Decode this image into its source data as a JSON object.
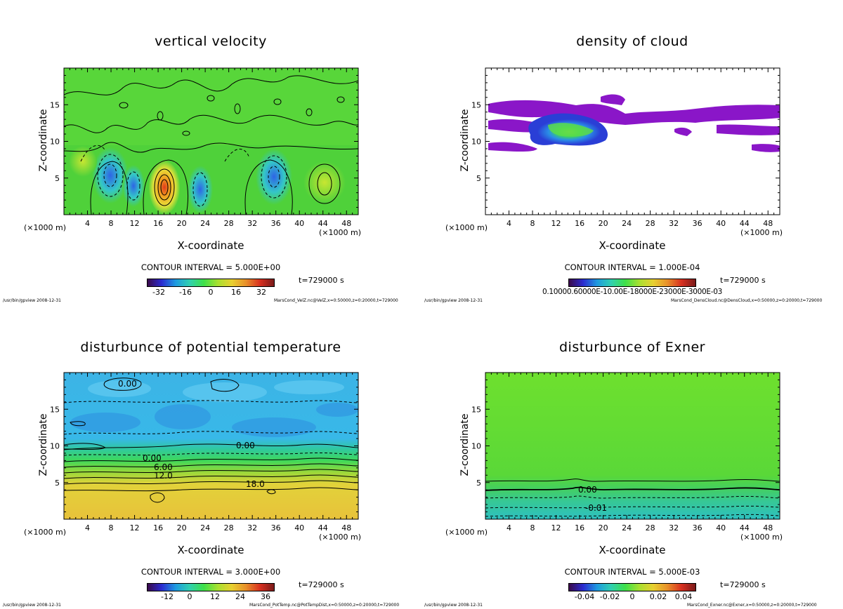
{
  "panels": [
    {
      "title": "vertical velocity",
      "xlabel": "X-coordinate",
      "ylabel": "Z-coordinate",
      "x_unit_left": "(×1000 m)",
      "x_unit_right": "(×1000 m)",
      "contour_interval": "CONTOUR INTERVAL = 5.000E+00",
      "time": "t=729000 s",
      "footer_left": "/usr/bin/gpview  2008-12-31",
      "footer_right": "MarsCond_VelZ.nc@VelZ,x=0:50000,z=0:20000,t=729000",
      "colorbar_ticks": [
        "-32",
        "-16",
        "0",
        "16",
        "32"
      ]
    },
    {
      "title": "density of cloud",
      "xlabel": "X-coordinate",
      "ylabel": "Z-coordinate",
      "x_unit_left": "(×1000 m)",
      "x_unit_right": "(×1000 m)",
      "contour_interval": "CONTOUR INTERVAL = 1.000E-04",
      "time": "t=729000 s",
      "footer_left": "/usr/bin/gpview  2008-12-31",
      "footer_right": "MarsCond_DensCloud.nc@DensCloud,x=0:50000,z=0:20000,t=729000",
      "colorbar_ticks_overlap": "0.10000.60000E-10.00E-18000E-23000E-3000E-03"
    },
    {
      "title": "disturbunce of potential temperature",
      "xlabel": "X-coordinate",
      "ylabel": "Z-coordinate",
      "x_unit_left": "(×1000 m)",
      "x_unit_right": "(×1000 m)",
      "contour_interval": "CONTOUR INTERVAL = 3.000E+00",
      "time": "t=729000 s",
      "footer_left": "/usr/bin/gpview  2008-12-31",
      "footer_right": "MarsCond_PotTemp.nc@PotTempDist,x=0:50000,z=0:20000,t=729000",
      "colorbar_ticks": [
        "-12",
        "0",
        "12",
        "24",
        "36"
      ],
      "contour_labels": [
        "0.00",
        "0.00",
        "0.00",
        "6.00",
        "12.0",
        "18.0"
      ]
    },
    {
      "title": "disturbunce of Exner",
      "xlabel": "X-coordinate",
      "ylabel": "Z-coordinate",
      "x_unit_left": "(×1000 m)",
      "x_unit_right": "(×1000 m)",
      "contour_interval": "CONTOUR INTERVAL = 5.000E-03",
      "time": "t=729000 s",
      "footer_left": "/usr/bin/gpview  2008-12-31",
      "footer_right": "MarsCond_Exner.nc@Exner,x=0:50000,z=0:20000,t=729000",
      "colorbar_ticks": [
        "-0.04",
        "-0.02",
        "0",
        "0.02",
        "0.04"
      ],
      "contour_labels": [
        "0.00",
        "-0.01"
      ]
    }
  ],
  "colors": {
    "field_green": "#4fd13a",
    "contour_black": "#000000",
    "cloud_purple": "#8a16c8",
    "ptemp_low_blue": "#3cb4e6",
    "ptemp_high_orange": "#e6c23c",
    "exner_green": "#6ee02e"
  },
  "chart_data": [
    {
      "type": "heatmap",
      "title": "vertical velocity",
      "xlabel": "X-coordinate",
      "ylabel": "Z-coordinate",
      "xlim": [
        0,
        50
      ],
      "ylim": [
        0,
        20
      ],
      "x_ticks": [
        4,
        8,
        12,
        16,
        20,
        24,
        28,
        32,
        36,
        40,
        44,
        48
      ],
      "y_ticks": [
        5,
        10,
        15
      ],
      "colorbar_ticks": [
        -32,
        -16,
        0,
        16,
        32
      ],
      "features": [
        {
          "kind": "updraft",
          "x": 17.5,
          "z": 3.6,
          "value": 30
        },
        {
          "kind": "downdraft",
          "x": 8,
          "z": 5,
          "value": -20
        },
        {
          "kind": "downdraft",
          "x": 23.5,
          "z": 3.5,
          "value": -15
        },
        {
          "kind": "downdraft",
          "x": 37.5,
          "z": 5,
          "value": -15
        },
        {
          "kind": "updraft",
          "x": 44.5,
          "z": 4,
          "value": 10
        }
      ]
    },
    {
      "type": "heatmap",
      "title": "density of cloud",
      "xlabel": "X-coordinate",
      "ylabel": "Z-coordinate",
      "xlim": [
        0,
        50
      ],
      "ylim": [
        0,
        20
      ],
      "x_ticks": [
        4,
        8,
        12,
        16,
        20,
        24,
        28,
        32,
        36,
        40,
        44,
        48
      ],
      "y_ticks": [
        5,
        10,
        15
      ],
      "cloud_layer_z": [
        8.5,
        16
      ],
      "dense_core": {
        "x": [
          10,
          21
        ],
        "z": [
          9,
          14
        ]
      }
    },
    {
      "type": "heatmap",
      "title": "disturbunce of potential temperature",
      "xlabel": "X-coordinate",
      "ylabel": "Z-coordinate",
      "xlim": [
        0,
        50
      ],
      "ylim": [
        0,
        20
      ],
      "x_ticks": [
        4,
        8,
        12,
        16,
        20,
        24,
        28,
        32,
        36,
        40,
        44,
        48
      ],
      "y_ticks": [
        5,
        10,
        15
      ],
      "colorbar_ticks": [
        -12,
        0,
        12,
        24,
        36
      ],
      "contours": [
        {
          "value": 0.0,
          "z": 9.3
        },
        {
          "value": 6.0,
          "z": 7.6
        },
        {
          "value": 12.0,
          "z": 6.5
        },
        {
          "value": 18.0,
          "z": 4.9
        }
      ]
    },
    {
      "type": "heatmap",
      "title": "disturbunce of Exner",
      "xlabel": "X-coordinate",
      "ylabel": "Z-coordinate",
      "xlim": [
        0,
        50
      ],
      "ylim": [
        0,
        20
      ],
      "x_ticks": [
        4,
        8,
        12,
        16,
        20,
        24,
        28,
        32,
        36,
        40,
        44,
        48
      ],
      "y_ticks": [
        5,
        10,
        15
      ],
      "colorbar_ticks": [
        -0.04,
        -0.02,
        0,
        0.02,
        0.04
      ],
      "contours": [
        {
          "value": 0.0,
          "z": 3.8
        },
        {
          "value": -0.005,
          "z": 2.9
        },
        {
          "value": -0.01,
          "z": 1.7
        },
        {
          "value": -0.015,
          "z": 0.5
        }
      ]
    }
  ]
}
